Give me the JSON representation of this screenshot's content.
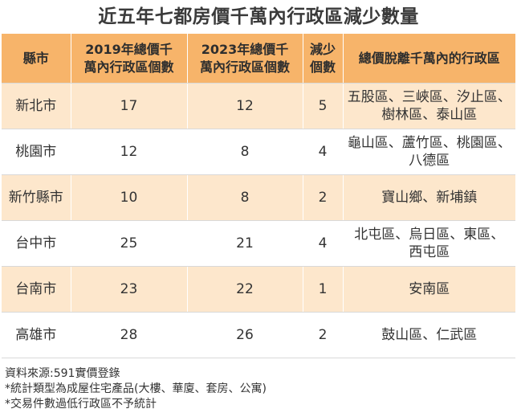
{
  "title": "近五年七都房價千萬內行政區減少數量",
  "table": {
    "headers": [
      "縣市",
      "2019年總價千\n萬內行政區個數",
      "2023年總價千\n萬內行政區個數",
      "減少\n個數",
      "總價脫離千萬內的行政區"
    ],
    "rows": [
      {
        "city": "新北市",
        "count_2019": "17",
        "count_2023": "12",
        "decrease": "5",
        "districts": "五股區、三峽區、汐止區、\n樹林區、泰山區"
      },
      {
        "city": "桃園市",
        "count_2019": "12",
        "count_2023": "8",
        "decrease": "4",
        "districts": "龜山區、蘆竹區、桃園區、\n八德區"
      },
      {
        "city": "新竹縣市",
        "count_2019": "10",
        "count_2023": "8",
        "decrease": "2",
        "districts": "寶山鄉、新埔鎮"
      },
      {
        "city": "台中市",
        "count_2019": "25",
        "count_2023": "21",
        "decrease": "4",
        "districts": "北屯區、烏日區、東區、\n西屯區"
      },
      {
        "city": "台南市",
        "count_2019": "23",
        "count_2023": "22",
        "decrease": "1",
        "districts": "安南區"
      },
      {
        "city": "高雄市",
        "count_2019": "28",
        "count_2023": "26",
        "decrease": "2",
        "districts": "鼓山區、仁武區"
      }
    ]
  },
  "notes": [
    "資料來源:591實價登錄",
    "*統計類型為成屋住宅產品(大樓、華廈、套房、公寓)",
    "*交易件數過低行政區不予統計"
  ],
  "colors": {
    "header_bg": "#f7b46a",
    "stripe_bg": "#fde7cc",
    "plain_bg": "#ffffff"
  }
}
